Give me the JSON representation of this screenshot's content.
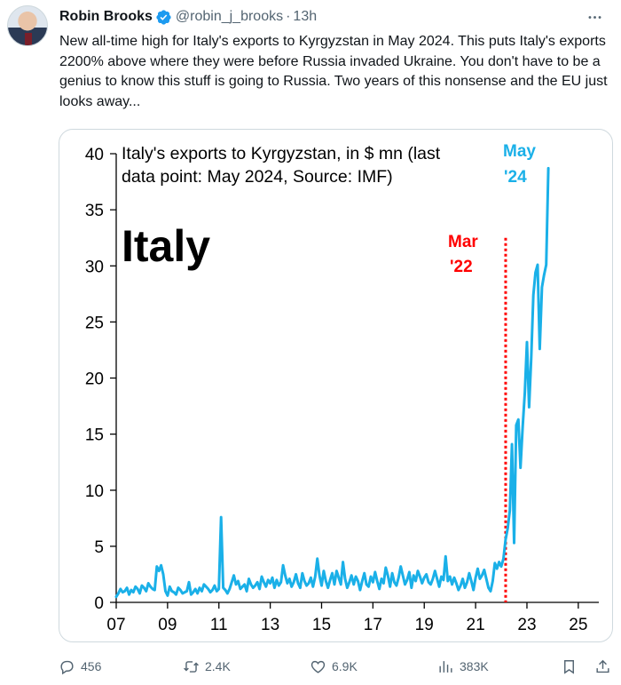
{
  "post": {
    "author_name": "Robin Brooks",
    "handle": "@robin_j_brooks",
    "separator": "·",
    "time": "13h",
    "text": "New all-time high for Italy's exports to Kyrgyzstan in May 2024. This puts Italy's exports 2200% above where they were before Russia invaded Ukraine. You don't have to be a genius to know this stuff is going to Russia. Two years of this nonsense and the EU just looks away...",
    "more_icon": "more-horizontal-icon",
    "verified_icon": "verified-badge-icon"
  },
  "actions": {
    "replies": "456",
    "reposts": "2.4K",
    "likes": "6.9K",
    "views": "383K"
  },
  "colors": {
    "series": "#1ab0e8",
    "marker": "#ff0000",
    "accent": "#1d9bf0"
  },
  "chart_data": {
    "type": "line",
    "title_line1": "Italy's exports to Kyrgyzstan, in $ mn (last",
    "title_line2": "data point: May 2024, Source: IMF)",
    "label_big": "Italy",
    "marker_label_1": "Mar",
    "marker_label_2": "'22",
    "end_label_1": "May",
    "end_label_2": "'24",
    "xlim": [
      2007,
      2025.8
    ],
    "ylim": [
      0,
      40
    ],
    "xticks": [
      2007,
      2009,
      2011,
      2013,
      2015,
      2017,
      2019,
      2021,
      2023,
      2025
    ],
    "xtick_labels": [
      "07",
      "09",
      "11",
      "13",
      "15",
      "17",
      "19",
      "21",
      "23",
      "25"
    ],
    "yticks": [
      0,
      5,
      10,
      15,
      20,
      25,
      30,
      35,
      40
    ],
    "ytick_labels": [
      "0",
      "5",
      "10",
      "15",
      "20",
      "25",
      "30",
      "35",
      "40"
    ],
    "marker_x": 2022.17,
    "x_start": 2007.0,
    "step": 0.0833333,
    "series": [
      {
        "values": [
          0.5,
          0.8,
          1.2,
          0.9,
          1.0,
          1.3,
          0.7,
          1.1,
          0.9,
          1.4,
          1.2,
          0.8,
          1.5,
          1.3,
          1.0,
          1.7,
          1.4,
          1.2,
          1.1,
          3.2,
          2.8,
          3.3,
          2.5,
          1.0,
          0.6,
          1.4,
          1.0,
          0.9,
          0.7,
          1.3,
          1.1,
          0.8,
          0.9,
          1.0,
          1.8,
          0.7,
          0.9,
          1.2,
          0.8,
          1.3,
          1.0,
          1.6,
          1.4,
          1.2,
          0.9,
          1.1,
          1.5,
          1.0,
          1.2,
          7.6,
          1.3,
          1.1,
          0.8,
          1.2,
          1.8,
          2.4,
          1.6,
          1.9,
          1.2,
          1.4,
          1.6,
          1.0,
          2.1,
          1.6,
          1.3,
          1.5,
          1.8,
          1.2,
          2.3,
          1.8,
          1.4,
          2.0,
          1.7,
          2.2,
          1.3,
          2.0,
          1.5,
          1.8,
          3.3,
          2.4,
          1.7,
          2.1,
          1.4,
          1.8,
          2.5,
          1.7,
          1.3,
          2.6,
          1.9,
          1.5,
          1.7,
          2.2,
          1.4,
          2.3,
          3.9,
          2.4,
          1.5,
          2.8,
          1.9,
          1.3,
          2.0,
          2.6,
          1.6,
          2.8,
          2.2,
          1.6,
          3.6,
          2.1,
          1.3,
          1.8,
          2.4,
          1.6,
          2.3,
          1.9,
          1.1,
          1.9,
          2.6,
          1.6,
          1.4,
          2.3,
          1.8,
          2.7,
          1.9,
          1.2,
          2.1,
          1.7,
          3.1,
          2.4,
          1.4,
          2.6,
          1.8,
          1.5,
          2.2,
          3.2,
          2.4,
          1.6,
          2.0,
          2.7,
          1.3,
          2.4,
          1.9,
          2.8,
          2.3,
          1.7,
          2.2,
          2.5,
          1.8,
          1.6,
          2.1,
          2.8,
          2.1,
          1.4,
          2.3,
          2.0,
          4.1,
          1.9,
          2.3,
          1.6,
          2.2,
          1.7,
          1.1,
          1.5,
          2.1,
          1.3,
          1.8,
          2.6,
          1.9,
          1.1,
          2.2,
          3.0,
          2.1,
          2.4,
          2.9,
          2.1,
          1.3,
          1.0,
          1.9,
          3.5,
          3.0,
          3.6,
          3.2,
          3.9,
          5.6,
          6.6,
          8.2,
          14.1,
          5.3,
          15.8,
          16.3,
          12.0,
          15.7,
          18.7,
          23.2,
          17.4,
          21.8,
          27.4,
          29.4,
          30.1,
          22.6,
          28.1,
          29.2,
          30.1,
          38.7
        ]
      }
    ]
  }
}
